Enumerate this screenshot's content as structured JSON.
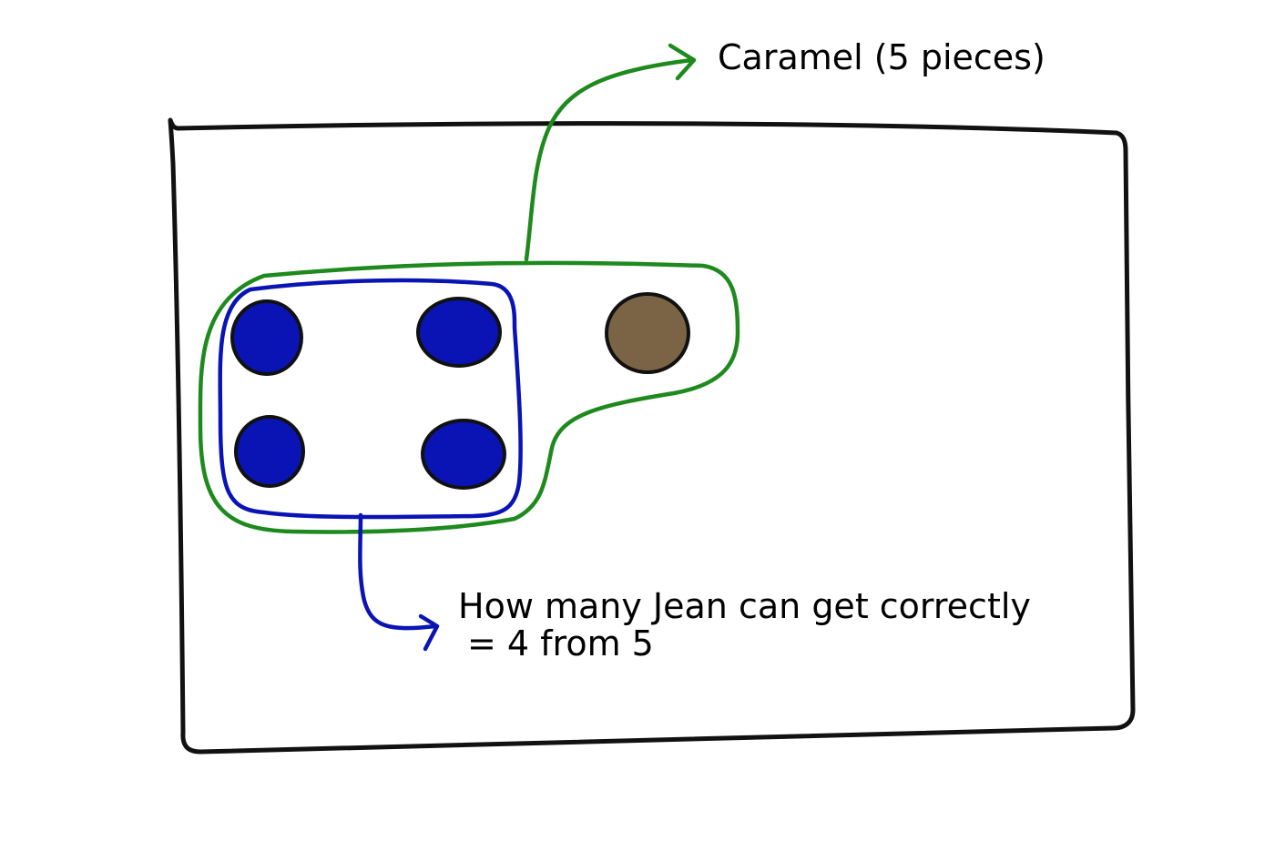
{
  "labels": {
    "caramel": "Caramel (5 pieces)",
    "jean_line1": "How many Jean can get correctly",
    "jean_line2": "= 4 from 5"
  },
  "colors": {
    "frame": "#111111",
    "group_all": "#1e8a1e",
    "group_subset": "#0a14b4",
    "piece_blue": "#0a14b4",
    "piece_brown": "#7b6446",
    "outline": "#111111"
  },
  "icons": {
    "arrow_caramel": "green-arrow-icon",
    "arrow_jean": "blue-arrow-icon"
  }
}
